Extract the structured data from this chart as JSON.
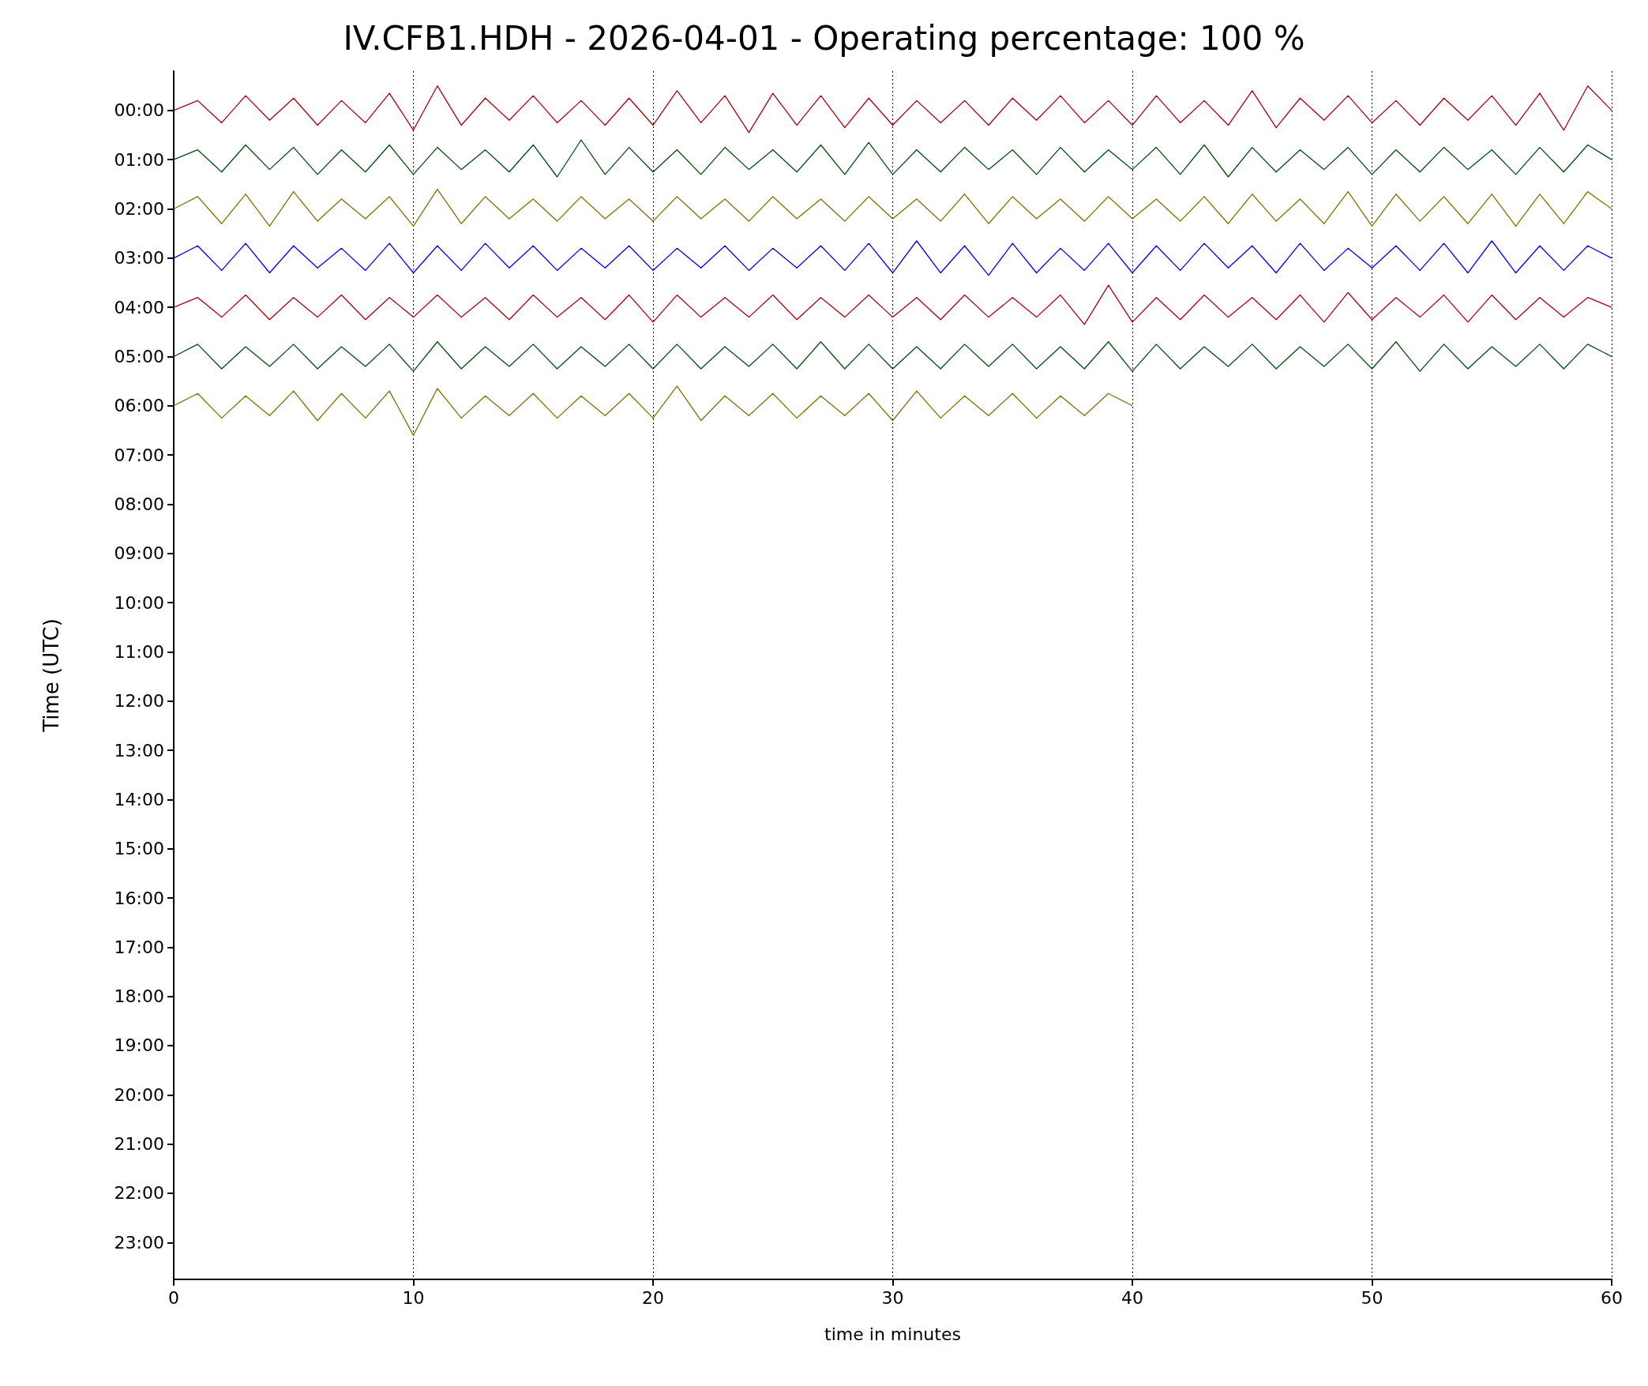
{
  "chart_data": {
    "type": "line",
    "title": "IV.CFB1.HDH - 2026-04-01 - Operating percentage: 100 %",
    "xlabel": "time in minutes",
    "ylabel": "Time (UTC)",
    "x": [
      0,
      1,
      2,
      3,
      4,
      5,
      6,
      7,
      8,
      9,
      10,
      11,
      12,
      13,
      14,
      15,
      16,
      17,
      18,
      19,
      20,
      21,
      22,
      23,
      24,
      25,
      26,
      27,
      28,
      29,
      30,
      31,
      32,
      33,
      34,
      35,
      36,
      37,
      38,
      39,
      40,
      41,
      42,
      43,
      44,
      45,
      46,
      47,
      48,
      49,
      50,
      51,
      52,
      53,
      54,
      55,
      56,
      57,
      58,
      59,
      60
    ],
    "series": [
      {
        "color": "#b00010",
        "values": [
          0,
          -0.2,
          0.25,
          -0.3,
          0.2,
          -0.25,
          0.3,
          -0.2,
          0.25,
          -0.35,
          0.4,
          -0.5,
          0.3,
          -0.25,
          0.2,
          -0.3,
          0.25,
          -0.2,
          0.3,
          -0.25,
          0.3,
          -0.4,
          0.25,
          -0.3,
          0.45,
          -0.35,
          0.3,
          -0.3,
          0.35,
          -0.25,
          0.3,
          -0.2,
          0.25,
          -0.2,
          0.3,
          -0.25,
          0.2,
          -0.3,
          0.25,
          -0.2,
          0.3,
          -0.3,
          0.25,
          -0.2,
          0.3,
          -0.4,
          0.35,
          -0.25,
          0.2,
          -0.3,
          0.25,
          -0.2,
          0.3,
          -0.25,
          0.2,
          -0.3,
          0.3,
          -0.35,
          0.4,
          -0.5,
          0
        ]
      },
      {
        "color": "#004d10",
        "values": [
          1,
          0.8,
          1.25,
          0.7,
          1.2,
          0.75,
          1.3,
          0.8,
          1.25,
          0.7,
          1.3,
          0.75,
          1.2,
          0.8,
          1.25,
          0.7,
          1.35,
          0.6,
          1.3,
          0.75,
          1.25,
          0.8,
          1.3,
          0.75,
          1.2,
          0.8,
          1.25,
          0.7,
          1.3,
          0.65,
          1.3,
          0.8,
          1.25,
          0.75,
          1.2,
          0.8,
          1.3,
          0.75,
          1.25,
          0.8,
          1.2,
          0.75,
          1.3,
          0.7,
          1.35,
          0.75,
          1.25,
          0.8,
          1.2,
          0.75,
          1.3,
          0.8,
          1.25,
          0.75,
          1.2,
          0.8,
          1.3,
          0.75,
          1.25,
          0.7,
          1
        ]
      },
      {
        "color": "#807000",
        "values": [
          2,
          1.75,
          2.3,
          1.7,
          2.35,
          1.65,
          2.25,
          1.8,
          2.2,
          1.75,
          2.35,
          1.6,
          2.3,
          1.75,
          2.2,
          1.8,
          2.25,
          1.75,
          2.2,
          1.8,
          2.25,
          1.75,
          2.2,
          1.8,
          2.25,
          1.75,
          2.2,
          1.8,
          2.25,
          1.75,
          2.2,
          1.8,
          2.25,
          1.7,
          2.3,
          1.75,
          2.2,
          1.8,
          2.25,
          1.75,
          2.2,
          1.8,
          2.25,
          1.75,
          2.3,
          1.7,
          2.25,
          1.8,
          2.3,
          1.65,
          2.35,
          1.7,
          2.25,
          1.75,
          2.3,
          1.7,
          2.35,
          1.7,
          2.3,
          1.65,
          2
        ]
      },
      {
        "color": "#0000ff",
        "values": [
          3,
          2.75,
          3.25,
          2.7,
          3.3,
          2.75,
          3.2,
          2.8,
          3.25,
          2.7,
          3.3,
          2.75,
          3.25,
          2.7,
          3.2,
          2.75,
          3.25,
          2.8,
          3.2,
          2.75,
          3.25,
          2.8,
          3.2,
          2.75,
          3.25,
          2.8,
          3.2,
          2.75,
          3.25,
          2.7,
          3.3,
          2.65,
          3.3,
          2.75,
          3.35,
          2.7,
          3.3,
          2.8,
          3.25,
          2.7,
          3.3,
          2.75,
          3.25,
          2.7,
          3.2,
          2.75,
          3.3,
          2.7,
          3.25,
          2.8,
          3.2,
          2.75,
          3.25,
          2.7,
          3.3,
          2.65,
          3.3,
          2.75,
          3.25,
          2.75,
          3
        ]
      },
      {
        "color": "#b00010",
        "values": [
          4,
          3.8,
          4.2,
          3.75,
          4.25,
          3.8,
          4.2,
          3.75,
          4.25,
          3.8,
          4.2,
          3.75,
          4.2,
          3.8,
          4.25,
          3.75,
          4.2,
          3.8,
          4.25,
          3.75,
          4.3,
          3.75,
          4.2,
          3.8,
          4.2,
          3.75,
          4.25,
          3.8,
          4.2,
          3.75,
          4.2,
          3.8,
          4.25,
          3.75,
          4.2,
          3.8,
          4.2,
          3.75,
          4.35,
          3.55,
          4.3,
          3.8,
          4.25,
          3.75,
          4.2,
          3.8,
          4.25,
          3.75,
          4.3,
          3.7,
          4.25,
          3.8,
          4.2,
          3.75,
          4.3,
          3.75,
          4.25,
          3.8,
          4.2,
          3.8,
          4
        ]
      },
      {
        "color": "#004d10",
        "values": [
          5,
          4.75,
          5.25,
          4.8,
          5.2,
          4.75,
          5.25,
          4.8,
          5.2,
          4.75,
          5.3,
          4.7,
          5.25,
          4.8,
          5.2,
          4.75,
          5.25,
          4.8,
          5.2,
          4.75,
          5.25,
          4.75,
          5.25,
          4.8,
          5.2,
          4.75,
          5.25,
          4.7,
          5.25,
          4.75,
          5.25,
          4.8,
          5.25,
          4.75,
          5.2,
          4.75,
          5.25,
          4.8,
          5.25,
          4.7,
          5.3,
          4.75,
          5.25,
          4.8,
          5.2,
          4.75,
          5.25,
          4.8,
          5.2,
          4.75,
          5.25,
          4.7,
          5.3,
          4.75,
          5.25,
          4.8,
          5.2,
          4.75,
          5.25,
          4.75,
          5
        ]
      },
      {
        "color": "#807000",
        "values": [
          6,
          5.75,
          6.25,
          5.8,
          6.2,
          5.7,
          6.3,
          5.75,
          6.25,
          5.7,
          6.6,
          5.65,
          6.25,
          5.8,
          6.2,
          5.75,
          6.25,
          5.8,
          6.2,
          5.75,
          6.25,
          5.6,
          6.3,
          5.8,
          6.2,
          5.75,
          6.25,
          5.8,
          6.2,
          5.75,
          6.3,
          5.7,
          6.25,
          5.8,
          6.2,
          5.75,
          6.25,
          5.8,
          6.2,
          5.75,
          6,
          null,
          null,
          null,
          null,
          null,
          null,
          null,
          null,
          null,
          null,
          null,
          null,
          null,
          null,
          null,
          null,
          null,
          null,
          null,
          null
        ]
      }
    ],
    "xlim": [
      0,
      60
    ],
    "xticks": [
      0,
      10,
      20,
      30,
      40,
      50,
      60
    ],
    "ylim": [
      23.75,
      -0.8
    ],
    "yticks": [
      {
        "value": 0,
        "label": "00:00"
      },
      {
        "value": 1,
        "label": "01:00"
      },
      {
        "value": 2,
        "label": "02:00"
      },
      {
        "value": 3,
        "label": "03:00"
      },
      {
        "value": 4,
        "label": "04:00"
      },
      {
        "value": 5,
        "label": "05:00"
      },
      {
        "value": 6,
        "label": "06:00"
      },
      {
        "value": 7,
        "label": "07:00"
      },
      {
        "value": 8,
        "label": "08:00"
      },
      {
        "value": 9,
        "label": "09:00"
      },
      {
        "value": 10,
        "label": "10:00"
      },
      {
        "value": 11,
        "label": "11:00"
      },
      {
        "value": 12,
        "label": "12:00"
      },
      {
        "value": 13,
        "label": "13:00"
      },
      {
        "value": 14,
        "label": "14:00"
      },
      {
        "value": 15,
        "label": "15:00"
      },
      {
        "value": 16,
        "label": "16:00"
      },
      {
        "value": 17,
        "label": "17:00"
      },
      {
        "value": 18,
        "label": "18:00"
      },
      {
        "value": 19,
        "label": "19:00"
      },
      {
        "value": 20,
        "label": "20:00"
      },
      {
        "value": 21,
        "label": "21:00"
      },
      {
        "value": 22,
        "label": "22:00"
      },
      {
        "value": 23,
        "label": "23:00"
      }
    ],
    "grid": "x",
    "marker": "none"
  }
}
